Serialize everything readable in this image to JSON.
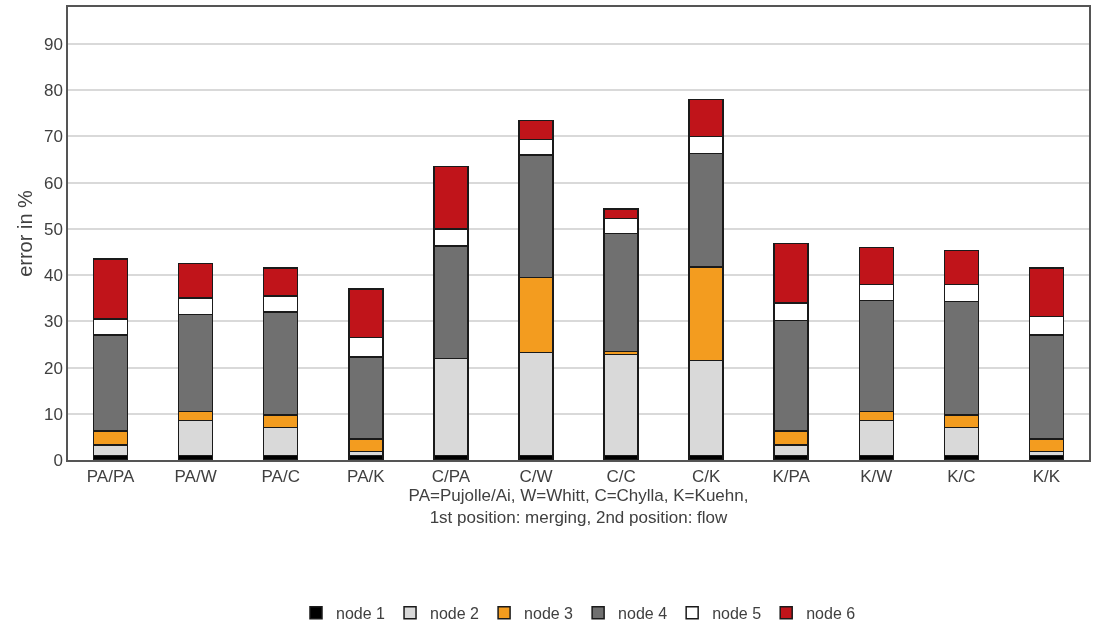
{
  "chart_data": {
    "type": "bar",
    "stacked": true,
    "ylabel": "error in %",
    "xlabel": "PA=Pujolle/Ai, W=Whitt, C=Chylla, K=Kuehn,\n1st position: merging, 2nd position: flow",
    "categories": [
      "PA/PA",
      "PA/W",
      "PA/C",
      "PA/K",
      "C/PA",
      "C/W",
      "C/C",
      "C/K",
      "K/PA",
      "K/W",
      "K/C",
      "K/K"
    ],
    "series": [
      {
        "name": "node 1",
        "color": "#000000",
        "values": [
          1,
          1,
          1,
          1,
          1,
          1,
          1,
          1,
          1,
          1,
          1,
          1
        ]
      },
      {
        "name": "node 2",
        "color": "#d9d9d9",
        "values": [
          2.2,
          7.5,
          6,
          0.8,
          21,
          22.3,
          21.8,
          20.5,
          2.2,
          7.5,
          6,
          0.8
        ]
      },
      {
        "name": "node 3",
        "color": "#f39c1f",
        "values": [
          3.1,
          2,
          2.7,
          2.7,
          0,
          16.2,
          0.7,
          20.2,
          3.1,
          2,
          2.7,
          2.7
        ]
      },
      {
        "name": "node 4",
        "color": "#707070",
        "values": [
          20.7,
          21,
          22.3,
          17.8,
          24.3,
          26.5,
          25.5,
          24.6,
          23.9,
          24,
          24.6,
          22.5
        ]
      },
      {
        "name": "node 5",
        "color": "#ffffff",
        "values": [
          3.5,
          3.5,
          3.5,
          4.2,
          3.7,
          3.3,
          3.3,
          3.7,
          3.8,
          3.5,
          3.7,
          4
        ]
      },
      {
        "name": "node 6",
        "color": "#c0141a",
        "values": [
          13,
          7.5,
          6,
          10.5,
          13.5,
          4.2,
          2,
          8,
          12.8,
          8,
          7.3,
          10.5
        ]
      }
    ],
    "ylim": [
      0,
      98
    ],
    "yticks": [
      0,
      10,
      20,
      30,
      40,
      50,
      60,
      70,
      80,
      90
    ],
    "grid": "y",
    "legend": "bottom"
  }
}
